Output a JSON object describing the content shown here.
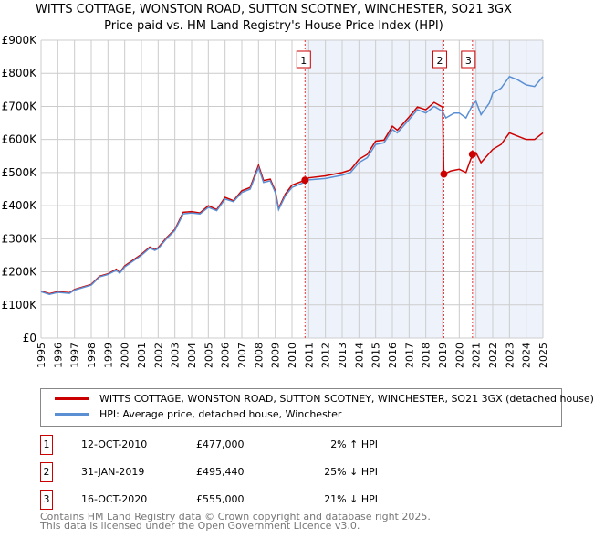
{
  "chart_data": {
    "type": "line",
    "title": "WITTS COTTAGE, WONSTON ROAD, SUTTON SCOTNEY, WINCHESTER, SO21 3GX",
    "subtitle": "Price paid vs. HM Land Registry's House Price Index (HPI)",
    "ylim": [
      0,
      900000
    ],
    "xlim": [
      1995,
      2025
    ],
    "yticks": [
      "£0",
      "£100K",
      "£200K",
      "£300K",
      "£400K",
      "£500K",
      "£600K",
      "£700K",
      "£800K",
      "£900K"
    ],
    "xticks": [
      "1995",
      "1996",
      "1997",
      "1998",
      "1999",
      "2000",
      "2001",
      "2002",
      "2003",
      "2004",
      "2005",
      "2006",
      "2007",
      "2008",
      "2009",
      "2010",
      "2011",
      "2012",
      "2013",
      "2014",
      "2015",
      "2016",
      "2017",
      "2018",
      "2019",
      "2020",
      "2021",
      "2022",
      "2023",
      "2024",
      "2025"
    ],
    "grid": true,
    "series": [
      {
        "name": "HPI: Average price, detached house, Winchester",
        "color": "#5b8fd4",
        "x": [
          1995,
          1995.5,
          1996,
          1996.7,
          1997,
          1998,
          1998.5,
          1999,
          1999.5,
          1999.7,
          2000,
          2001,
          2001.5,
          2001.8,
          2002,
          2002.5,
          2003,
          2003.5,
          2004,
          2004.5,
          2005,
          2005.5,
          2006,
          2006.5,
          2007,
          2007.5,
          2008,
          2008.3,
          2008.7,
          2009,
          2009.2,
          2009.6,
          2010,
          2010.8,
          2011,
          2012,
          2013,
          2013.5,
          2014,
          2014.5,
          2015,
          2015.5,
          2016,
          2016.3,
          2017,
          2017.5,
          2018,
          2018.5,
          2019,
          2019.2,
          2019.7,
          2020,
          2020.4,
          2020.8,
          2021,
          2021.3,
          2021.8,
          2022,
          2022.5,
          2023,
          2023.5,
          2024,
          2024.5,
          2025
        ],
        "y": [
          140,
          132,
          138,
          135,
          145,
          160,
          185,
          192,
          205,
          196,
          215,
          250,
          272,
          265,
          270,
          300,
          325,
          375,
          378,
          375,
          395,
          385,
          420,
          412,
          440,
          450,
          515,
          470,
          475,
          440,
          388,
          430,
          455,
          472,
          478,
          482,
          492,
          500,
          530,
          545,
          585,
          590,
          630,
          620,
          660,
          690,
          680,
          700,
          685,
          665,
          680,
          680,
          665,
          705,
          715,
          675,
          710,
          740,
          755,
          790,
          780,
          765,
          760,
          790
        ]
      },
      {
        "name": "WITTS COTTAGE, WONSTON ROAD, SUTTON SCOTNEY, WINCHESTER, SO21 3GX (detached house)",
        "color": "#cc0000",
        "x": [
          1995,
          1995.5,
          1996,
          1996.7,
          1997,
          1998,
          1998.5,
          1999,
          1999.5,
          1999.7,
          2000,
          2001,
          2001.5,
          2001.8,
          2002,
          2002.5,
          2003,
          2003.5,
          2004,
          2004.5,
          2005,
          2005.5,
          2006,
          2006.5,
          2007,
          2007.5,
          2008,
          2008.3,
          2008.7,
          2009,
          2009.2,
          2009.6,
          2010,
          2010.78,
          2011,
          2012,
          2013,
          2013.5,
          2014,
          2014.5,
          2015,
          2015.5,
          2016,
          2016.3,
          2017,
          2017.5,
          2018,
          2018.5,
          2019,
          2019.08,
          2019.5,
          2020,
          2020.4,
          2020.79,
          2021,
          2021.3,
          2022,
          2022.5,
          2023,
          2023.5,
          2024,
          2024.5,
          2025
        ],
        "y": [
          142,
          134,
          140,
          137,
          147,
          162,
          187,
          194,
          208,
          198,
          218,
          253,
          275,
          267,
          273,
          303,
          328,
          380,
          382,
          378,
          400,
          388,
          425,
          415,
          445,
          455,
          522,
          476,
          480,
          445,
          392,
          435,
          462,
          477,
          484,
          490,
          500,
          508,
          540,
          555,
          595,
          598,
          640,
          628,
          668,
          698,
          690,
          712,
          698,
          495,
          505,
          510,
          500,
          555,
          560,
          530,
          570,
          585,
          620,
          610,
          600,
          600,
          620
        ]
      }
    ],
    "transactions": [
      {
        "num": "1",
        "x": 2010.78,
        "date": "12-OCT-2010",
        "price": "£477,000",
        "value": 477,
        "hpi": "2% ↑ HPI"
      },
      {
        "num": "2",
        "x": 2019.08,
        "date": "31-JAN-2019",
        "price": "£495,440",
        "value": 495.44,
        "hpi": "25% ↓ HPI"
      },
      {
        "num": "3",
        "x": 2020.79,
        "date": "16-OCT-2020",
        "price": "£555,000",
        "value": 555,
        "hpi": "21% ↓ HPI"
      }
    ],
    "legend": [
      "WITTS COTTAGE, WONSTON ROAD, SUTTON SCOTNEY, WINCHESTER, SO21 3GX (detached house)",
      "HPI: Average price, detached house, Winchester"
    ],
    "footer": [
      "Contains HM Land Registry data © Crown copyright and database right 2025.",
      "This data is licensed under the Open Government Licence v3.0."
    ]
  }
}
